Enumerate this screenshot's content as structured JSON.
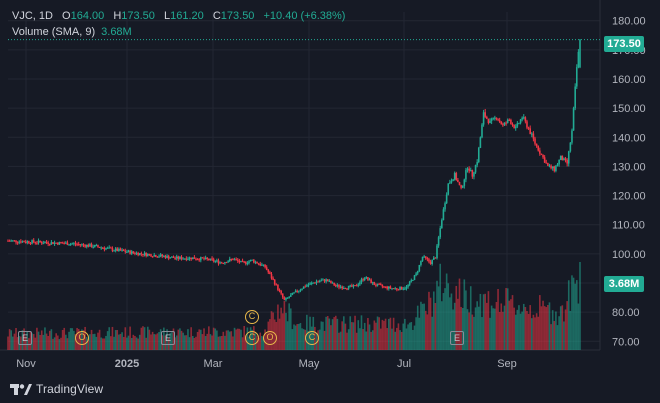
{
  "legend": {
    "symbol": "VJC, 1D",
    "open_label": "O",
    "open": "164.00",
    "high_label": "H",
    "high": "173.50",
    "low_label": "L",
    "low": "161.20",
    "close_label": "C",
    "close": "173.50",
    "change": "+10.40 (+6.38%)",
    "volume_label": "Volume (SMA, 9)",
    "volume_value": "3.68M"
  },
  "branding": {
    "name": "TradingView"
  },
  "colors": {
    "up": "#22ab94",
    "down": "#f23645",
    "bg": "#161a25",
    "grid": "#232733",
    "text": "#b2b5be",
    "event": "#e8b84a"
  },
  "chart_data": {
    "type": "candlestick",
    "y_axis": {
      "ticks": [
        70,
        80,
        90,
        100,
        110,
        120,
        130,
        140,
        150,
        160,
        170,
        180
      ],
      "ylim": [
        67,
        183
      ]
    },
    "x_axis": {
      "labels": [
        "Nov",
        "2025",
        "Mar",
        "May",
        "Jul",
        "Sep"
      ]
    },
    "last_price": "173.50",
    "last_volume": "3.68M",
    "price_path": [
      {
        "t": 0,
        "p": 104.5
      },
      {
        "t": 20,
        "p": 104.0
      },
      {
        "t": 40,
        "p": 103.5
      },
      {
        "t": 55,
        "p": 102.5
      },
      {
        "t": 65,
        "p": 101.5
      },
      {
        "t": 80,
        "p": 100.2
      },
      {
        "t": 95,
        "p": 99.3
      },
      {
        "t": 105,
        "p": 98.5
      },
      {
        "t": 115,
        "p": 98.6
      },
      {
        "t": 125,
        "p": 98.0
      },
      {
        "t": 133,
        "p": 97.0
      },
      {
        "t": 140,
        "p": 98.2
      },
      {
        "t": 146,
        "p": 96.8
      },
      {
        "t": 152,
        "p": 97.8
      },
      {
        "t": 160,
        "p": 95.5
      },
      {
        "t": 166,
        "p": 90.0
      },
      {
        "t": 172,
        "p": 84.0
      },
      {
        "t": 178,
        "p": 86.5
      },
      {
        "t": 185,
        "p": 89.0
      },
      {
        "t": 192,
        "p": 90.5
      },
      {
        "t": 198,
        "p": 91.0
      },
      {
        "t": 204,
        "p": 89.0
      },
      {
        "t": 210,
        "p": 88.5
      },
      {
        "t": 216,
        "p": 88.8
      },
      {
        "t": 222,
        "p": 92.0
      },
      {
        "t": 228,
        "p": 89.5
      },
      {
        "t": 235,
        "p": 88.5
      },
      {
        "t": 242,
        "p": 88.0
      },
      {
        "t": 248,
        "p": 88.5
      },
      {
        "t": 254,
        "p": 93.0
      },
      {
        "t": 258,
        "p": 99.0
      },
      {
        "t": 263,
        "p": 97.0
      },
      {
        "t": 266,
        "p": 99.0
      },
      {
        "t": 270,
        "p": 112.0
      },
      {
        "t": 274,
        "p": 124.0
      },
      {
        "t": 278,
        "p": 127.0
      },
      {
        "t": 282,
        "p": 122.0
      },
      {
        "t": 286,
        "p": 130.0
      },
      {
        "t": 289,
        "p": 127.0
      },
      {
        "t": 292,
        "p": 132.0
      },
      {
        "t": 296,
        "p": 148.0
      },
      {
        "t": 300,
        "p": 145.0
      },
      {
        "t": 304,
        "p": 147.0
      },
      {
        "t": 308,
        "p": 144.0
      },
      {
        "t": 312,
        "p": 146.0
      },
      {
        "t": 316,
        "p": 143.0
      },
      {
        "t": 320,
        "p": 147.0
      },
      {
        "t": 324,
        "p": 143.0
      },
      {
        "t": 328,
        "p": 138.0
      },
      {
        "t": 332,
        "p": 134.0
      },
      {
        "t": 336,
        "p": 130.0
      },
      {
        "t": 340,
        "p": 129.0
      },
      {
        "t": 344,
        "p": 133.0
      },
      {
        "t": 348,
        "p": 131.0
      },
      {
        "t": 351,
        "p": 142.0
      },
      {
        "t": 354,
        "p": 164.0
      },
      {
        "t": 356,
        "p": 173.5
      }
    ],
    "volume_profile": [
      {
        "t": 0,
        "v": 0.22
      },
      {
        "t": 160,
        "v": 0.25
      },
      {
        "t": 170,
        "v": 0.6
      },
      {
        "t": 180,
        "v": 0.35
      },
      {
        "t": 250,
        "v": 0.35
      },
      {
        "t": 262,
        "v": 0.6
      },
      {
        "t": 270,
        "v": 0.9
      },
      {
        "t": 285,
        "v": 0.7
      },
      {
        "t": 300,
        "v": 0.65
      },
      {
        "t": 330,
        "v": 0.55
      },
      {
        "t": 345,
        "v": 0.5
      },
      {
        "t": 350,
        "v": 0.75
      },
      {
        "t": 356,
        "v": 1.0
      }
    ],
    "events": [
      {
        "t": 15,
        "kind": "E",
        "row": "low"
      },
      {
        "t": 68,
        "kind": "O",
        "row": "low"
      },
      {
        "t": 165,
        "kind": "C",
        "row": "high"
      },
      {
        "t": 165,
        "kind": "C",
        "row": "low"
      },
      {
        "t": 174,
        "kind": "O",
        "row": "low"
      },
      {
        "t": 90,
        "kind": "E",
        "row": "low"
      },
      {
        "t": 200,
        "kind": "C",
        "row": "low"
      },
      {
        "t": 283,
        "kind": "E",
        "row": "low"
      }
    ]
  }
}
